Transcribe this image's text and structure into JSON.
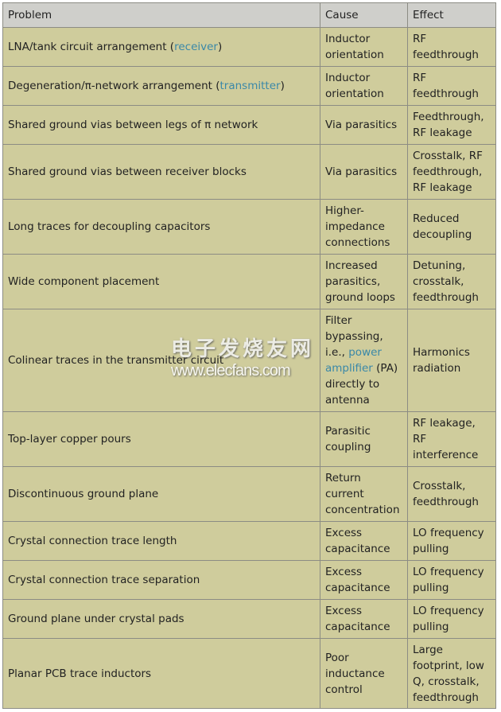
{
  "headers": [
    "Problem",
    "Cause",
    "Effect"
  ],
  "rows": [
    {
      "problem": "LNA/tank circuit arrangement (",
      "problem_link": "receiver",
      "problem_after": ")",
      "cause": "Inductor orientation",
      "effect": "RF feedthrough"
    },
    {
      "problem": "Degeneration/π-network arrangement (",
      "problem_link": "transmitter",
      "problem_after": ")",
      "cause": "Inductor orientation",
      "effect": "RF feedthrough"
    },
    {
      "problem": "Shared ground vias between legs of π network",
      "cause": "Via parasitics",
      "effect": "Feedthrough, RF leakage"
    },
    {
      "problem": "Shared ground vias between receiver blocks",
      "cause": "Via parasitics",
      "effect": "Crosstalk, RF feedthrough, RF leakage"
    },
    {
      "problem": "Long traces for decoupling capacitors",
      "cause": "Higher-impedance connections",
      "effect": "Reduced decoupling"
    },
    {
      "problem": "Wide component placement",
      "cause": "Increased parasitics, ground loops",
      "effect": "Detuning, crosstalk, feedthrough"
    },
    {
      "problem": "Colinear traces in the transmitter circuit",
      "cause": "Filter bypassing, i.e., ",
      "cause_link": "power amplifier",
      "cause_after": " (PA) directly to antenna",
      "effect": "Harmonics radiation"
    },
    {
      "problem": "Top-layer copper pours",
      "cause": "Parasitic coupling",
      "effect": "RF leakage, RF interference"
    },
    {
      "problem": "Discontinuous ground plane",
      "cause": "Return current concentration",
      "effect": "Crosstalk, feedthrough"
    },
    {
      "problem": "Crystal connection trace length",
      "cause": "Excess capacitance",
      "effect": "LO frequency pulling"
    },
    {
      "problem": "Crystal connection trace separation",
      "cause": "Excess capacitance",
      "effect": "LO frequency pulling"
    },
    {
      "problem": "Ground plane under crystal pads",
      "cause": "Excess capacitance",
      "effect": "LO frequency pulling"
    },
    {
      "problem": "Planar PCB trace inductors",
      "cause": "Poor inductance control",
      "effect": "Large footprint, low Q, crosstalk, feedthrough"
    }
  ],
  "watermark": {
    "chinese": "电子发烧友网",
    "url": "www.elecfans.com"
  },
  "colors": {
    "header_bg": "#cfcfcb",
    "row_bg": "#cfcc9c",
    "link": "#3a88a8",
    "border": "#8c8c84"
  }
}
